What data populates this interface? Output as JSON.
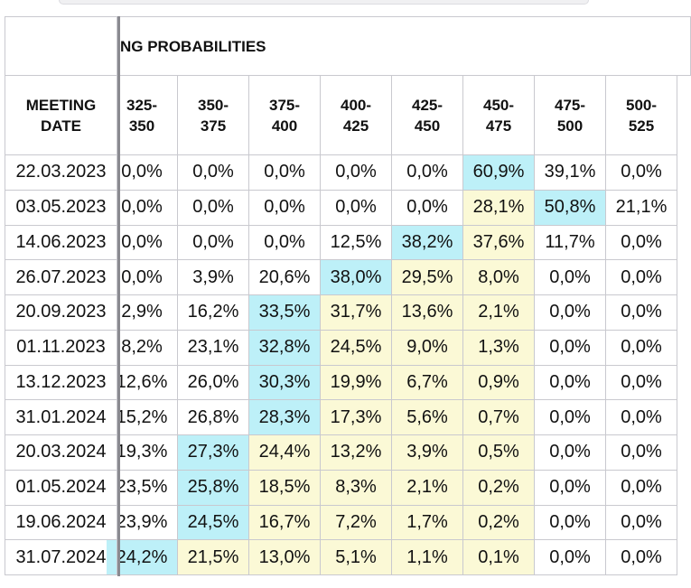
{
  "header": {
    "group_title": "NG PROBABILITIES",
    "date_label": "MEETING DATE",
    "ranges": [
      "325-350",
      "350-375",
      "375-400",
      "400-425",
      "425-450",
      "450-475",
      "475-500",
      "500-525"
    ]
  },
  "rows": [
    {
      "date": "22.03.2023",
      "values": [
        "0,0%",
        "0,0%",
        "0,0%",
        "0,0%",
        "0,0%",
        "60,9%",
        "39,1%",
        "0,0%"
      ],
      "fills": [
        null,
        null,
        null,
        null,
        null,
        "#bdf0f8",
        null,
        null
      ]
    },
    {
      "date": "03.05.2023",
      "values": [
        "0,0%",
        "0,0%",
        "0,0%",
        "0,0%",
        "0,0%",
        "28,1%",
        "50,8%",
        "21,1%"
      ],
      "fills": [
        null,
        null,
        null,
        null,
        null,
        "#fbf9d6",
        "#bdf0f8",
        null
      ]
    },
    {
      "date": "14.06.2023",
      "values": [
        "0,0%",
        "0,0%",
        "0,0%",
        "12,5%",
        "38,2%",
        "37,6%",
        "11,7%",
        "0,0%"
      ],
      "fills": [
        null,
        null,
        null,
        null,
        "#bdf0f8",
        "#fbf9d6",
        null,
        null
      ]
    },
    {
      "date": "26.07.2023",
      "values": [
        "0,0%",
        "3,9%",
        "20,6%",
        "38,0%",
        "29,5%",
        "8,0%",
        "0,0%",
        "0,0%"
      ],
      "fills": [
        null,
        null,
        null,
        "#bdf0f8",
        "#fbf9d6",
        "#fbf9d6",
        null,
        null
      ]
    },
    {
      "date": "20.09.2023",
      "values": [
        "2,9%",
        "16,2%",
        "33,5%",
        "31,7%",
        "13,6%",
        "2,1%",
        "0,0%",
        "0,0%"
      ],
      "fills": [
        null,
        null,
        "#bdf0f8",
        "#fbf9d6",
        "#fbf9d6",
        "#fbf9d6",
        null,
        null
      ]
    },
    {
      "date": "01.11.2023",
      "values": [
        "8,2%",
        "23,1%",
        "32,8%",
        "24,5%",
        "9,0%",
        "1,3%",
        "0,0%",
        "0,0%"
      ],
      "fills": [
        null,
        null,
        "#bdf0f8",
        "#fbf9d6",
        "#fbf9d6",
        "#fbf9d6",
        null,
        null
      ]
    },
    {
      "date": "13.12.2023",
      "values": [
        "12,6%",
        "26,0%",
        "30,3%",
        "19,9%",
        "6,7%",
        "0,9%",
        "0,0%",
        "0,0%"
      ],
      "fills": [
        null,
        null,
        "#bdf0f8",
        "#fbf9d6",
        "#fbf9d6",
        "#fbf9d6",
        null,
        null
      ]
    },
    {
      "date": "31.01.2024",
      "values": [
        "15,2%",
        "26,8%",
        "28,3%",
        "17,3%",
        "5,6%",
        "0,7%",
        "0,0%",
        "0,0%"
      ],
      "fills": [
        null,
        null,
        "#bdf0f8",
        "#fbf9d6",
        "#fbf9d6",
        "#fbf9d6",
        null,
        null
      ]
    },
    {
      "date": "20.03.2024",
      "values": [
        "19,3%",
        "27,3%",
        "24,4%",
        "13,2%",
        "3,9%",
        "0,5%",
        "0,0%",
        "0,0%"
      ],
      "fills": [
        null,
        "#bdf0f8",
        "#fbf9d6",
        "#fbf9d6",
        "#fbf9d6",
        "#fbf9d6",
        null,
        null
      ]
    },
    {
      "date": "01.05.2024",
      "values": [
        "23,5%",
        "25,8%",
        "18,5%",
        "8,3%",
        "2,1%",
        "0,2%",
        "0,0%",
        "0,0%"
      ],
      "fills": [
        null,
        "#bdf0f8",
        "#fbf9d6",
        "#fbf9d6",
        "#fbf9d6",
        "#fbf9d6",
        null,
        null
      ]
    },
    {
      "date": "19.06.2024",
      "values": [
        "23,9%",
        "24,5%",
        "16,7%",
        "7,2%",
        "1,7%",
        "0,2%",
        "0,0%",
        "0,0%"
      ],
      "fills": [
        null,
        "#bdf0f8",
        "#fbf9d6",
        "#fbf9d6",
        "#fbf9d6",
        "#fbf9d6",
        null,
        null
      ]
    },
    {
      "date": "31.07.2024",
      "values": [
        "24,2%",
        "21,5%",
        "13,0%",
        "5,1%",
        "1,1%",
        "0,1%",
        "0,0%",
        "0,0%"
      ],
      "fills": [
        "#bdf0f8",
        "#fbf9d6",
        "#fbf9d6",
        "#fbf9d6",
        "#fbf9d6",
        "#fbf9d6",
        null,
        null
      ]
    }
  ]
}
